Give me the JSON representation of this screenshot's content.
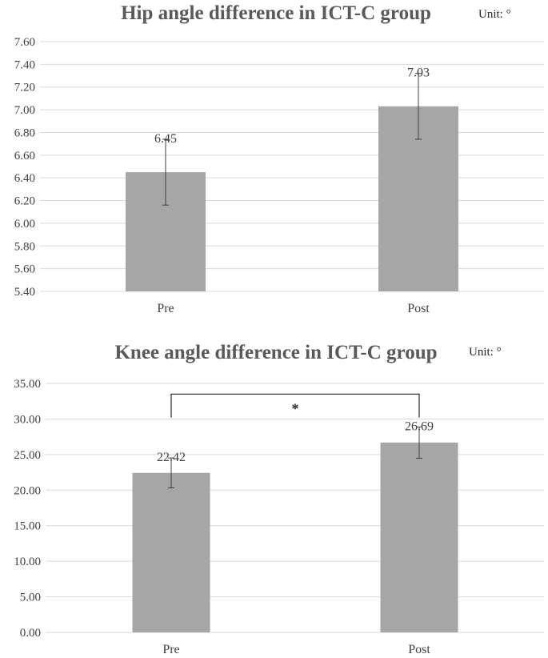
{
  "colors": {
    "bar": "#a6a6a6",
    "grid": "#d9d9d9",
    "error": "#404040",
    "bracket": "#262626"
  },
  "chart_data": [
    {
      "type": "bar",
      "title": "Hip angle difference in ICT-C group",
      "unit": "Unit: °",
      "categories": [
        "Pre",
        "Post"
      ],
      "values": [
        6.45,
        7.03
      ],
      "data_labels": [
        "6.45",
        "7.03"
      ],
      "error_bars": [
        0.29,
        0.29
      ],
      "ylim": [
        5.4,
        7.6
      ],
      "ytick_step": 0.2,
      "ytick_labels": [
        "5.40",
        "5.60",
        "5.80",
        "6.00",
        "6.20",
        "6.40",
        "6.60",
        "6.80",
        "7.00",
        "7.20",
        "7.40",
        "7.60"
      ],
      "grid": true,
      "xlabel": "",
      "ylabel": ""
    },
    {
      "type": "bar",
      "title": "Knee angle difference in ICT-C group",
      "unit": "Unit: °",
      "categories": [
        "Pre",
        "Post"
      ],
      "values": [
        22.42,
        26.69
      ],
      "data_labels": [
        "22.42",
        "26.69"
      ],
      "error_bars": [
        2.1,
        2.2
      ],
      "ylim": [
        0,
        35
      ],
      "ytick_step": 5,
      "ytick_labels": [
        "0.00",
        "5.00",
        "10.00",
        "15.00",
        "20.00",
        "25.00",
        "30.00",
        "35.00"
      ],
      "grid": true,
      "significance": {
        "label": "*",
        "between": [
          "Pre",
          "Post"
        ],
        "level": 33.5
      },
      "xlabel": "",
      "ylabel": ""
    }
  ]
}
